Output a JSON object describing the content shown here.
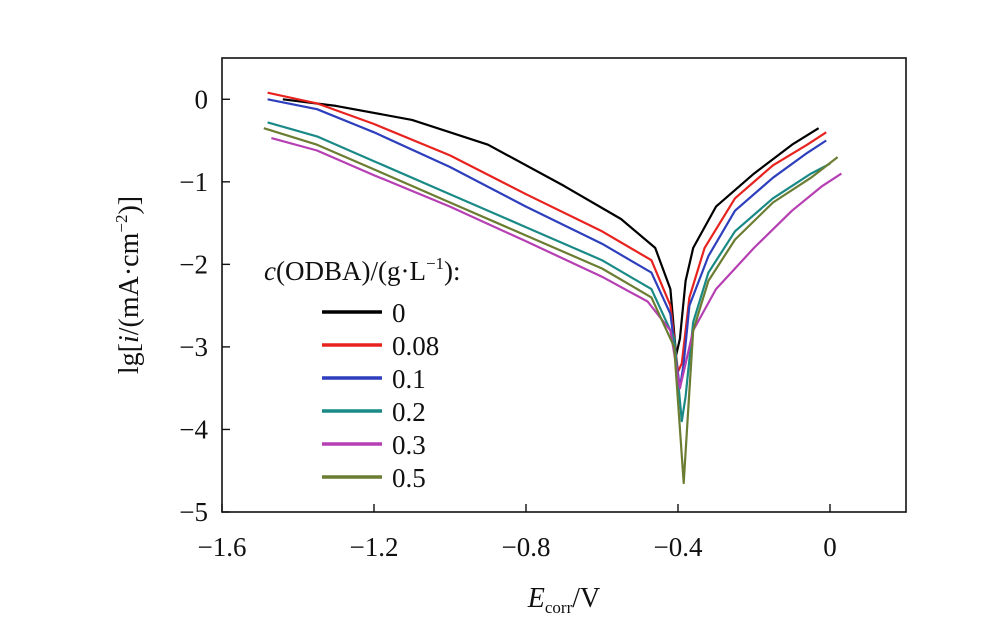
{
  "chart_data": {
    "type": "line",
    "title": "",
    "xlabel": {
      "main": "E",
      "sub": "corr",
      "suffix": "/V"
    },
    "ylabel": {
      "pre": "lg[",
      "ital": "i",
      "mid": "/(mA·cm",
      "sup": "−2",
      "post": ")]"
    },
    "xlim": [
      -1.6,
      0.2
    ],
    "ylim": [
      -5,
      0.5
    ],
    "xticks": [
      -1.6,
      -1.2,
      -0.8,
      -0.4,
      0
    ],
    "xtick_labels": [
      "−1.6",
      "−1.2",
      "−0.8",
      "−0.4",
      "0"
    ],
    "yticks": [
      0,
      -1,
      -2,
      -3,
      -4,
      -5
    ],
    "ytick_labels": [
      "0",
      "−1",
      "−2",
      "−3",
      "−4",
      "−5"
    ],
    "legend": {
      "title": {
        "ital": "c",
        "a": "(ODBA)/(g·L",
        "sup": "−1",
        "b": "):"
      },
      "position": "center-left"
    },
    "series": [
      {
        "name": "0",
        "color": "#000000",
        "points": [
          [
            -1.44,
            0
          ],
          [
            -1.3,
            -0.08
          ],
          [
            -1.1,
            -0.25
          ],
          [
            -0.9,
            -0.55
          ],
          [
            -0.7,
            -1.05
          ],
          [
            -0.55,
            -1.45
          ],
          [
            -0.46,
            -1.8
          ],
          [
            -0.42,
            -2.3
          ],
          [
            -0.405,
            -3.1
          ],
          [
            -0.395,
            -2.9
          ],
          [
            -0.38,
            -2.2
          ],
          [
            -0.36,
            -1.8
          ],
          [
            -0.3,
            -1.3
          ],
          [
            -0.2,
            -0.9
          ],
          [
            -0.1,
            -0.55
          ],
          [
            -0.03,
            -0.35
          ]
        ]
      },
      {
        "name": "0.08",
        "color": "#e8231f",
        "points": [
          [
            -1.48,
            0.08
          ],
          [
            -1.35,
            -0.05
          ],
          [
            -1.2,
            -0.3
          ],
          [
            -1.0,
            -0.68
          ],
          [
            -0.8,
            -1.15
          ],
          [
            -0.6,
            -1.6
          ],
          [
            -0.47,
            -1.95
          ],
          [
            -0.42,
            -2.5
          ],
          [
            -0.4,
            -3.3
          ],
          [
            -0.39,
            -3.2
          ],
          [
            -0.37,
            -2.4
          ],
          [
            -0.33,
            -1.8
          ],
          [
            -0.25,
            -1.2
          ],
          [
            -0.15,
            -0.8
          ],
          [
            -0.06,
            -0.55
          ],
          [
            -0.01,
            -0.4
          ]
        ]
      },
      {
        "name": "0.1",
        "color": "#2e3fbd",
        "points": [
          [
            -1.48,
            0
          ],
          [
            -1.35,
            -0.12
          ],
          [
            -1.2,
            -0.4
          ],
          [
            -1.0,
            -0.82
          ],
          [
            -0.8,
            -1.3
          ],
          [
            -0.6,
            -1.75
          ],
          [
            -0.47,
            -2.1
          ],
          [
            -0.42,
            -2.6
          ],
          [
            -0.395,
            -3.5
          ],
          [
            -0.385,
            -3.2
          ],
          [
            -0.37,
            -2.5
          ],
          [
            -0.32,
            -1.9
          ],
          [
            -0.25,
            -1.35
          ],
          [
            -0.15,
            -0.95
          ],
          [
            -0.06,
            -0.65
          ],
          [
            -0.01,
            -0.5
          ]
        ]
      },
      {
        "name": "0.2",
        "color": "#1a8a86",
        "points": [
          [
            -1.48,
            -0.28
          ],
          [
            -1.35,
            -0.45
          ],
          [
            -1.2,
            -0.75
          ],
          [
            -1.0,
            -1.15
          ],
          [
            -0.8,
            -1.55
          ],
          [
            -0.6,
            -1.95
          ],
          [
            -0.47,
            -2.3
          ],
          [
            -0.41,
            -2.9
          ],
          [
            -0.39,
            -3.9
          ],
          [
            -0.38,
            -3.6
          ],
          [
            -0.36,
            -2.7
          ],
          [
            -0.32,
            -2.1
          ],
          [
            -0.25,
            -1.6
          ],
          [
            -0.15,
            -1.2
          ],
          [
            -0.05,
            -0.9
          ],
          [
            0.0,
            -0.78
          ]
        ]
      },
      {
        "name": "0.3",
        "color": "#b63fb3",
        "points": [
          [
            -1.47,
            -0.47
          ],
          [
            -1.35,
            -0.62
          ],
          [
            -1.2,
            -0.92
          ],
          [
            -1.0,
            -1.3
          ],
          [
            -0.8,
            -1.72
          ],
          [
            -0.6,
            -2.15
          ],
          [
            -0.48,
            -2.45
          ],
          [
            -0.42,
            -2.8
          ],
          [
            -0.395,
            -3.5
          ],
          [
            -0.385,
            -3.3
          ],
          [
            -0.36,
            -2.8
          ],
          [
            -0.3,
            -2.3
          ],
          [
            -0.2,
            -1.8
          ],
          [
            -0.1,
            -1.35
          ],
          [
            -0.02,
            -1.05
          ],
          [
            0.03,
            -0.9
          ]
        ]
      },
      {
        "name": "0.5",
        "color": "#6b7d32",
        "points": [
          [
            -1.49,
            -0.35
          ],
          [
            -1.35,
            -0.55
          ],
          [
            -1.2,
            -0.85
          ],
          [
            -1.0,
            -1.25
          ],
          [
            -0.8,
            -1.65
          ],
          [
            -0.6,
            -2.05
          ],
          [
            -0.47,
            -2.4
          ],
          [
            -0.41,
            -3.0
          ],
          [
            -0.385,
            -4.65
          ],
          [
            -0.375,
            -3.9
          ],
          [
            -0.36,
            -2.8
          ],
          [
            -0.32,
            -2.2
          ],
          [
            -0.25,
            -1.7
          ],
          [
            -0.15,
            -1.25
          ],
          [
            -0.05,
            -0.95
          ],
          [
            0.02,
            -0.7
          ]
        ]
      }
    ]
  }
}
